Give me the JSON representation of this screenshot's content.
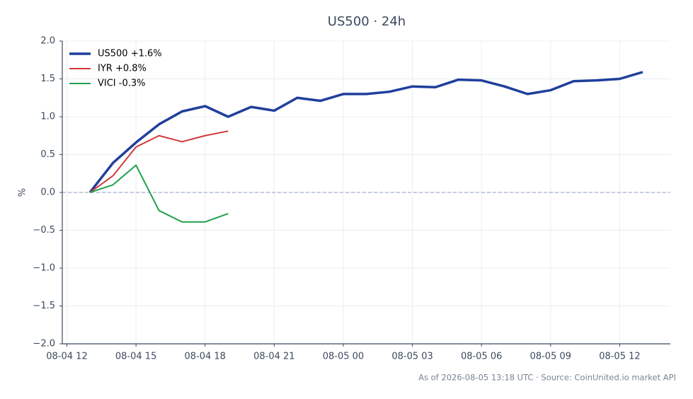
{
  "chart_data": {
    "type": "line",
    "title": "US500 · 24h",
    "ylabel": "%",
    "footnote": "As of 2026-08-05 13:18 UTC · Source: CoinUnited.io market API",
    "x": [
      "08-04 13",
      "08-04 14",
      "08-04 15",
      "08-04 16",
      "08-04 17",
      "08-04 18",
      "08-04 19",
      "08-04 20",
      "08-04 21",
      "08-04 22",
      "08-04 23",
      "08-05 00",
      "08-05 01",
      "08-05 02",
      "08-05 03",
      "08-05 04",
      "08-05 05",
      "08-05 06",
      "08-05 07",
      "08-05 08",
      "08-05 09",
      "08-05 10",
      "08-05 11",
      "08-05 12",
      "08-05 13"
    ],
    "xticks": [
      "08-04 12",
      "08-04 15",
      "08-04 18",
      "08-04 21",
      "08-05 00",
      "08-05 03",
      "08-05 06",
      "08-05 09",
      "08-05 12"
    ],
    "series": [
      {
        "name": "US500 +1.6%",
        "color": "#1f3f9c",
        "line_width": 3.5,
        "values": [
          0,
          0.39,
          0.66,
          0.9,
          1.07,
          1.14,
          1.0,
          1.13,
          1.08,
          1.25,
          1.21,
          1.3,
          1.3,
          1.33,
          1.4,
          1.39,
          1.49,
          1.48,
          1.4,
          1.3,
          1.35,
          1.47,
          1.48,
          1.5,
          1.59
        ]
      },
      {
        "name": "IYR +0.8%",
        "color": "#d03a3a",
        "line_width": 2,
        "values": [
          0,
          0.22,
          0.6,
          0.75,
          0.67,
          0.75,
          0.81,
          null,
          null,
          null,
          null,
          null,
          null,
          null,
          null,
          null,
          null,
          null,
          null,
          null,
          null,
          null,
          null,
          null,
          null
        ]
      },
      {
        "name": "VICI -0.3%",
        "color": "#1fa04a",
        "line_width": 2,
        "values": [
          0,
          0.1,
          0.36,
          -0.24,
          -0.39,
          -0.39,
          -0.28,
          null,
          null,
          null,
          null,
          null,
          null,
          null,
          null,
          null,
          null,
          null,
          null,
          null,
          null,
          null,
          null,
          null,
          null
        ]
      }
    ],
    "ylim": [
      -2,
      2
    ],
    "yticks": [
      {
        "value": -2,
        "label": "−2.0"
      },
      {
        "value": -1.5,
        "label": "−1.5"
      },
      {
        "value": -1,
        "label": "−1.0"
      },
      {
        "value": -0.5,
        "label": "−0.5"
      },
      {
        "value": 0,
        "label": "0.0"
      },
      {
        "value": 0.5,
        "label": "0.5"
      },
      {
        "value": 1,
        "label": "1.0"
      },
      {
        "value": 1.5,
        "label": "1.5"
      },
      {
        "value": 2,
        "label": "2.0"
      }
    ],
    "grid": true,
    "legend": "upper left"
  }
}
